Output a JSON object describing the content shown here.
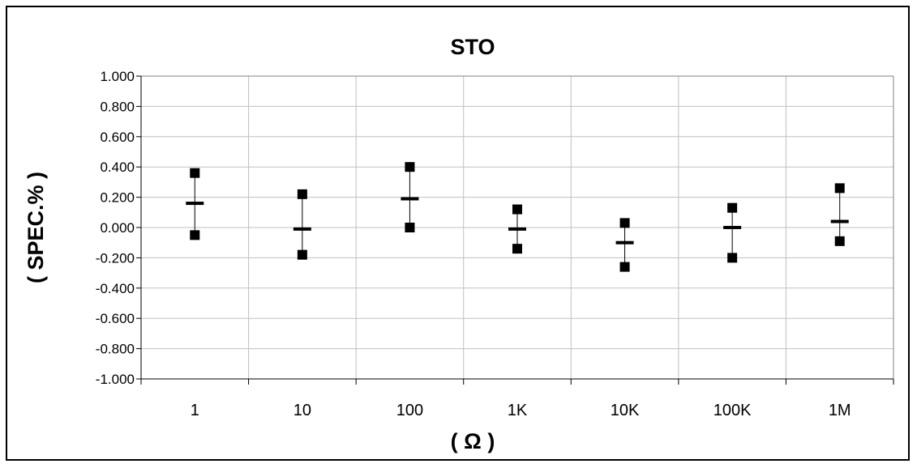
{
  "chart_data": {
    "type": "scatter",
    "title": "STO",
    "xlabel": "( Ω )",
    "ylabel": "( SPEC.% )",
    "categories": [
      "1",
      "10",
      "100",
      "1K",
      "10K",
      "100K",
      "1M"
    ],
    "ylim": [
      -1.0,
      1.0
    ],
    "yticks": [
      "1.000",
      "0.800",
      "0.600",
      "0.400",
      "0.200",
      "0.000",
      "-0.200",
      "-0.400",
      "-0.600",
      "-0.800",
      "-1.000"
    ],
    "ytick_values": [
      1.0,
      0.8,
      0.6,
      0.4,
      0.2,
      0.0,
      -0.2,
      -0.4,
      -0.6,
      -0.8,
      -1.0
    ],
    "grid": true,
    "legend": "none",
    "series": [
      {
        "values": [
          0.36,
          0.22,
          0.4,
          0.12,
          0.03,
          0.13,
          0.26
        ]
      },
      {
        "values": [
          0.16,
          -0.01,
          0.19,
          -0.01,
          -0.1,
          0.0,
          0.04
        ]
      },
      {
        "values": [
          -0.05,
          -0.18,
          0.0,
          -0.14,
          -0.26,
          -0.2,
          -0.09
        ]
      }
    ]
  }
}
